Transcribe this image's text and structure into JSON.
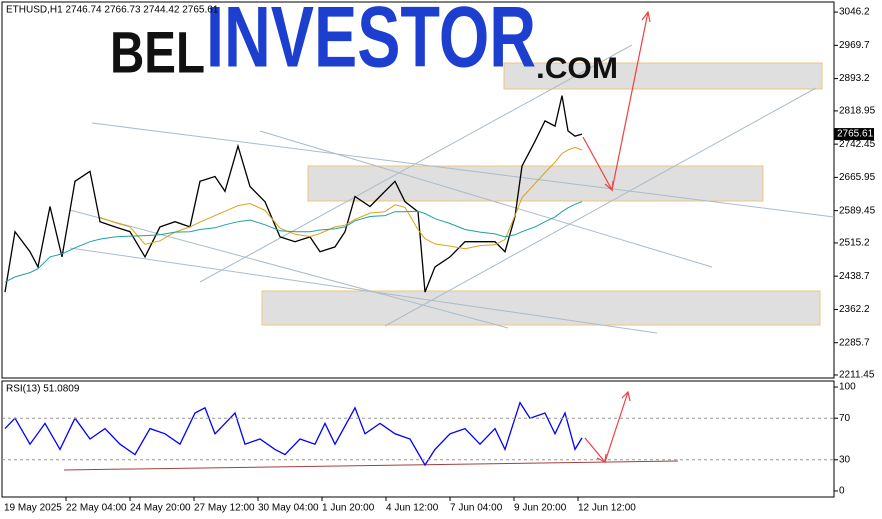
{
  "chart_data": [
    {
      "type": "line",
      "title": "ETHUSD,H1  2746.74 2766.73 2744.42 2765.61",
      "watermark": {
        "left": "BEL",
        "middle": "INVESTOR",
        "right": ".COM"
      },
      "xlim": [
        12,
        844
      ],
      "ylim": [
        2204.5,
        3069.4
      ],
      "yticks": [
        3046.2,
        2969.7,
        2893.2,
        2818.95,
        2742.45,
        2665.95,
        2589.45,
        2515.2,
        2438.7,
        2362.2,
        2285.7,
        2211.45
      ],
      "x": [
        15,
        25,
        40,
        48,
        60,
        72,
        85,
        100,
        110,
        125,
        140,
        155,
        170,
        185,
        200,
        210,
        225,
        235,
        248,
        260,
        275,
        290,
        305,
        320,
        330,
        345,
        355,
        365,
        380,
        395,
        405,
        415,
        428,
        435,
        445,
        460,
        475,
        490,
        505,
        515,
        525,
        532,
        545,
        555,
        565,
        572,
        578,
        585,
        592
      ],
      "series": [
        {
          "color": "#000000",
          "values": [
            2402,
            2541,
            2495,
            2460,
            2599,
            2483,
            2657,
            2680,
            2564,
            2552,
            2541,
            2483,
            2552,
            2564,
            2552,
            2657,
            2668,
            2634,
            2738,
            2645,
            2610,
            2529,
            2518,
            2529,
            2495,
            2506,
            2541,
            2622,
            2599,
            2634,
            2657,
            2610,
            2587,
            2402,
            2460,
            2483,
            2518,
            2518,
            2518,
            2495,
            2576,
            2692,
            2749,
            2796,
            2784,
            2854,
            2773,
            2761,
            2765.61
          ]
        },
        {
          "color": "#d9a21b",
          "values": [
            null,
            null,
            null,
            null,
            null,
            null,
            null,
            null,
            2574,
            2562,
            2552,
            2512,
            2520,
            2540,
            2552,
            2563,
            2578,
            2588,
            2601,
            2606,
            2590,
            2549,
            2535,
            2530,
            2537,
            2552,
            2556,
            2569,
            2584,
            2587,
            2603,
            2597,
            2546,
            2525,
            2513,
            2508,
            2502,
            2509,
            2511,
            2523,
            2578,
            2619,
            2652,
            2677,
            2701,
            2721,
            2729,
            2735,
            2729
          ]
        },
        {
          "color": "#20a0a0",
          "values": [
            2425,
            2437,
            2447,
            2456,
            2483,
            2490,
            2504,
            2518,
            2524,
            2529,
            2531,
            2532,
            2534,
            2540,
            2541,
            2546,
            2550,
            2557,
            2564,
            2568,
            2557,
            2543,
            2541,
            2541,
            2545,
            2548,
            2552,
            2566,
            2576,
            2578,
            2587,
            2587,
            2588,
            2583,
            2571,
            2560,
            2546,
            2540,
            2536,
            2529,
            2534,
            2541,
            2552,
            2564,
            2575,
            2587,
            2596,
            2604,
            2610
          ]
        }
      ]
    },
    {
      "type": "line",
      "title": "RSI(13) 51.0809",
      "xlim": [
        12,
        844
      ],
      "ylim": [
        -5.8,
        105.8
      ],
      "yticks": [
        100,
        70,
        30,
        0
      ],
      "levels": [
        70,
        30
      ],
      "xticks": [
        {
          "value": 0,
          "label": "19 May 2025"
        },
        {
          "value": 76,
          "label": "22 May 04:00"
        },
        {
          "value": 140,
          "label": "24 May 20:00"
        },
        {
          "value": 204,
          "label": "27 May 12:00"
        },
        {
          "value": 268,
          "label": "30 May 04:00"
        },
        {
          "value": 332,
          "label": "1 Jun 20:00"
        },
        {
          "value": 396,
          "label": "4 Jun 12:00"
        },
        {
          "value": 460,
          "label": "7 Jun 04:00"
        },
        {
          "value": 524,
          "label": "9 Jun 20:00"
        },
        {
          "value": 588,
          "label": "12 Jun 12:00"
        }
      ],
      "x": [
        15,
        25,
        40,
        55,
        70,
        85,
        100,
        115,
        130,
        145,
        160,
        175,
        190,
        205,
        215,
        225,
        235,
        245,
        255,
        270,
        285,
        295,
        310,
        325,
        335,
        345,
        365,
        375,
        390,
        405,
        420,
        435,
        445,
        460,
        475,
        490,
        505,
        515,
        530,
        540,
        555,
        565,
        575,
        585,
        592
      ],
      "series": [
        {
          "color": "#0000ff",
          "values": [
            60,
            70,
            45,
            65,
            40,
            70,
            50,
            60,
            45,
            35,
            60,
            55,
            45,
            75,
            80,
            55,
            65,
            75,
            45,
            50,
            40,
            35,
            50,
            45,
            65,
            45,
            80,
            55,
            65,
            55,
            50,
            25,
            40,
            55,
            60,
            45,
            60,
            40,
            85,
            70,
            75,
            55,
            75,
            40,
            51.0809
          ]
        }
      ]
    }
  ]
}
